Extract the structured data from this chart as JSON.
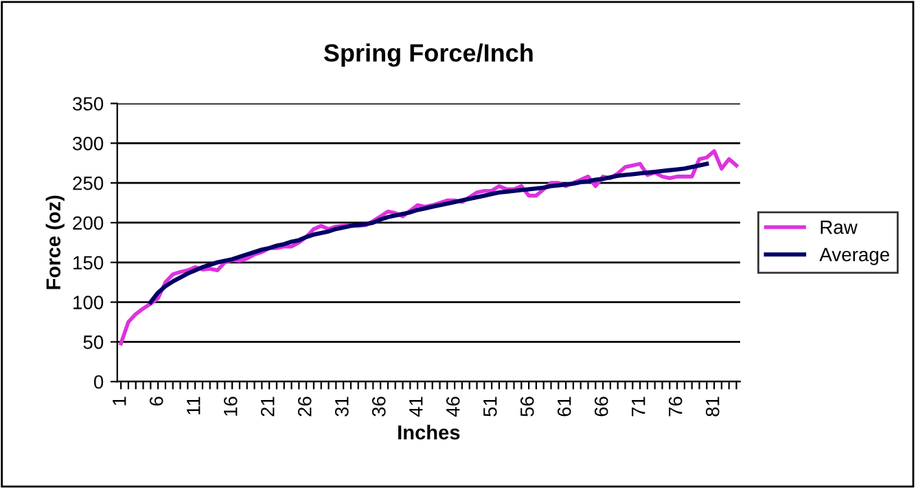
{
  "chart_data": {
    "type": "line",
    "title": "Spring Force/Inch",
    "xlabel": "Inches",
    "ylabel": "Force (oz)",
    "categories": [
      "1",
      null,
      null,
      null,
      null,
      "6",
      null,
      null,
      null,
      null,
      "11",
      null,
      null,
      null,
      null,
      "16",
      null,
      null,
      null,
      null,
      "21",
      null,
      null,
      null,
      null,
      "26",
      null,
      null,
      null,
      null,
      "31",
      null,
      null,
      null,
      null,
      "36",
      null,
      null,
      null,
      null,
      "41",
      null,
      null,
      null,
      null,
      "46",
      null,
      null,
      null,
      null,
      "51",
      null,
      null,
      null,
      null,
      "56",
      null,
      null,
      null,
      null,
      "61",
      null,
      null,
      null,
      null,
      "66",
      null,
      null,
      null,
      null,
      "71",
      null,
      null,
      null,
      null,
      "76",
      null,
      null,
      null,
      null,
      "81",
      null,
      null,
      null
    ],
    "series": [
      {
        "name": "Raw",
        "color": "#dd33dd",
        "values": [
          48,
          75,
          85,
          92,
          98,
          105,
          125,
          135,
          138,
          140,
          144,
          141,
          142,
          140,
          150,
          153,
          152,
          155,
          160,
          163,
          168,
          168,
          170,
          170,
          175,
          182,
          192,
          196,
          192,
          195,
          196,
          197,
          196,
          197,
          202,
          208,
          214,
          212,
          208,
          215,
          222,
          220,
          222,
          225,
          228,
          228,
          226,
          232,
          238,
          240,
          240,
          246,
          242,
          242,
          246,
          234,
          234,
          242,
          250,
          250,
          246,
          250,
          254,
          258,
          246,
          258,
          256,
          262,
          270,
          272,
          274,
          260,
          263,
          258,
          256,
          258,
          258,
          258,
          280,
          282,
          290,
          268,
          280,
          272
        ]
      },
      {
        "name": "Average",
        "color": "#000066",
        "values": [
          null,
          null,
          null,
          null,
          100,
          112,
          120,
          126,
          131,
          136,
          140,
          144,
          147,
          150,
          152,
          154,
          157,
          160,
          163,
          166,
          168,
          171,
          173,
          176,
          178,
          182,
          185,
          187,
          189,
          192,
          194,
          196,
          197,
          198,
          200,
          204,
          207,
          209,
          211,
          213,
          216,
          218,
          220,
          222,
          224,
          226,
          228,
          230,
          232,
          234,
          236,
          238,
          239,
          240,
          241,
          242,
          243,
          244,
          246,
          247,
          248,
          249,
          251,
          252,
          254,
          255,
          257,
          259,
          260,
          261,
          262,
          263,
          264,
          265,
          266,
          267,
          268,
          270,
          272,
          274,
          null,
          null,
          null,
          null
        ]
      }
    ],
    "ylim": [
      0,
      350
    ],
    "yticks": [
      0,
      50,
      100,
      150,
      200,
      250,
      300,
      350
    ],
    "grid": "y",
    "legend": "right",
    "marker": "none",
    "line_style": "solid"
  }
}
